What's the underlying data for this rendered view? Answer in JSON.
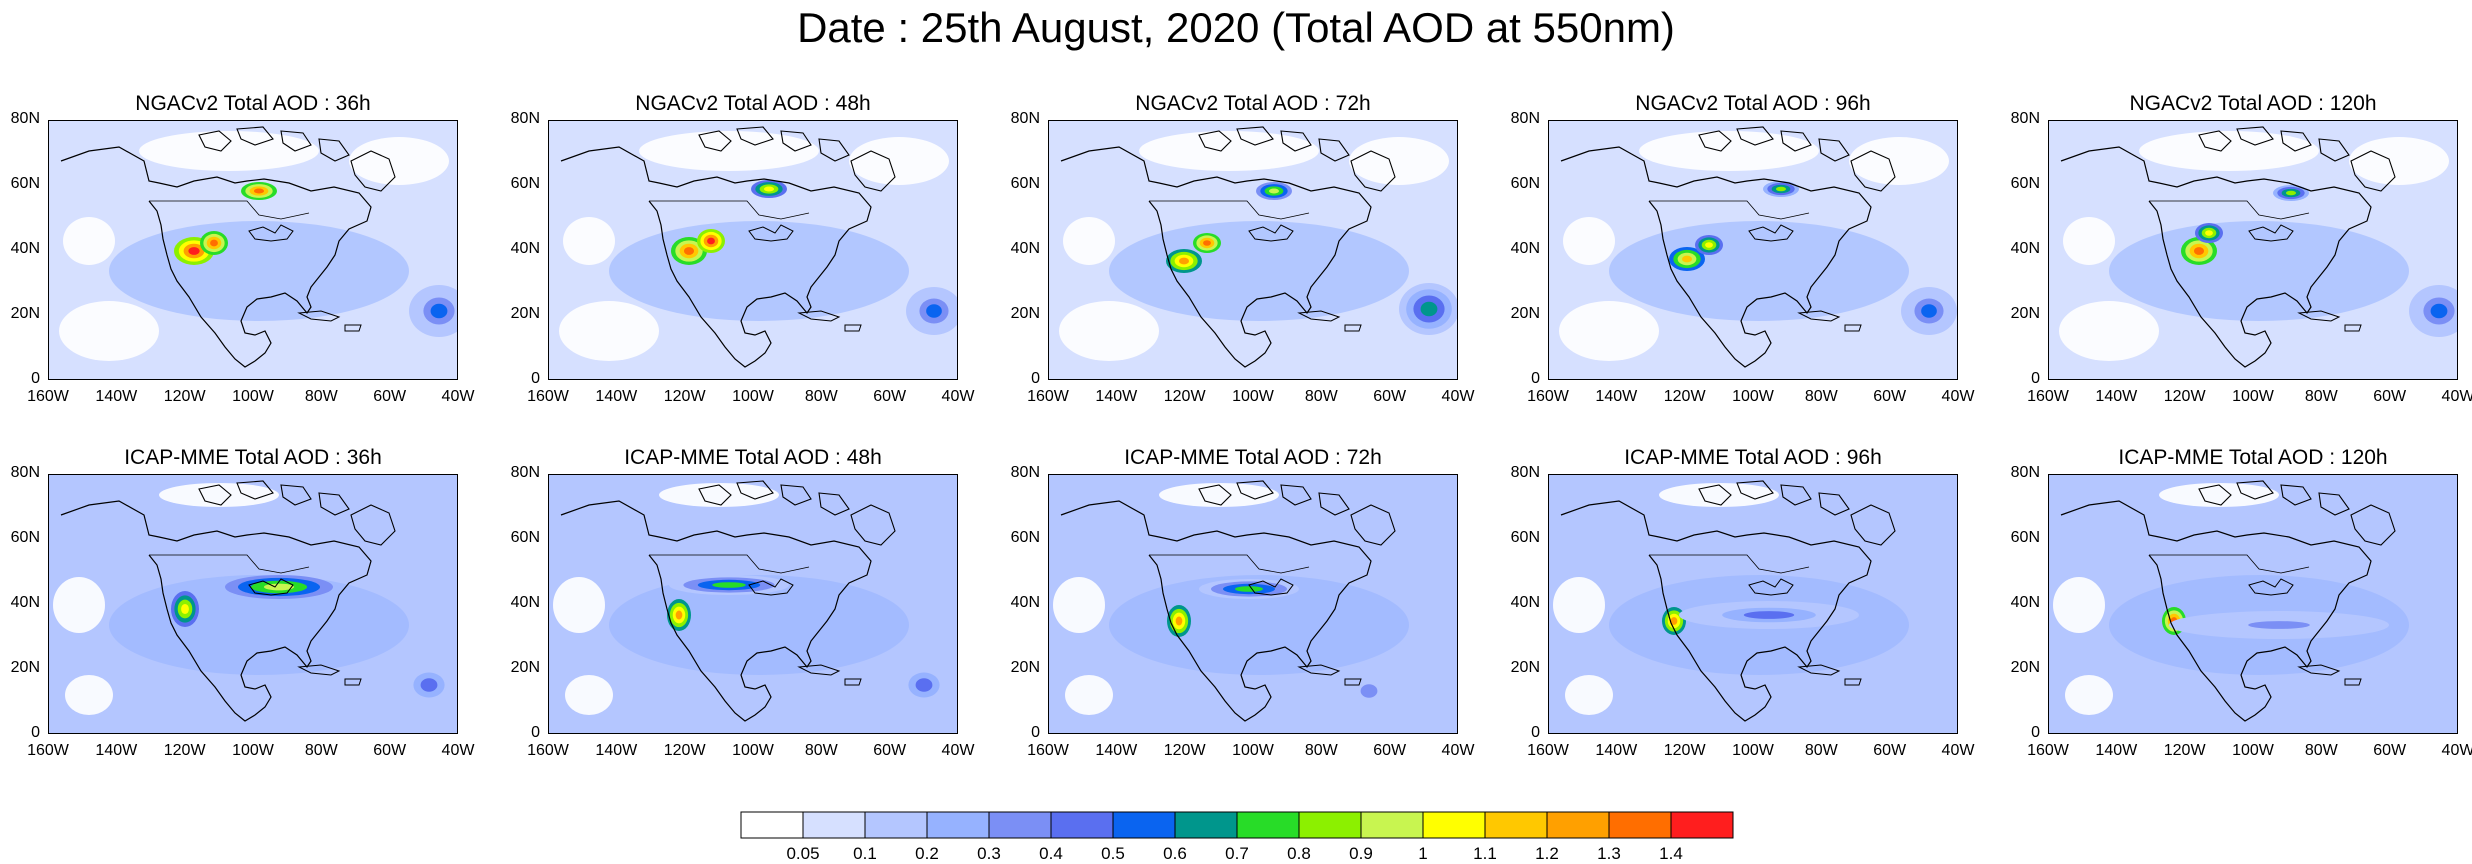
{
  "figure": {
    "title": "Date : 25th August, 2020 (Total AOD at 550nm)"
  },
  "lat_ticks": [
    "0",
    "20N",
    "40N",
    "60N",
    "80N"
  ],
  "lon_ticks": [
    "160W",
    "140W",
    "120W",
    "100W",
    "80W",
    "60W",
    "40W"
  ],
  "panels": [
    {
      "title": "NGACv2 Total AOD : 36h",
      "model": "NGACv2",
      "lead": "36h"
    },
    {
      "title": "NGACv2 Total AOD : 48h",
      "model": "NGACv2",
      "lead": "48h"
    },
    {
      "title": "NGACv2 Total AOD : 72h",
      "model": "NGACv2",
      "lead": "72h"
    },
    {
      "title": "NGACv2 Total AOD : 96h",
      "model": "NGACv2",
      "lead": "96h"
    },
    {
      "title": "NGACv2 Total AOD : 120h",
      "model": "NGACv2",
      "lead": "120h"
    },
    {
      "title": "ICAP-MME Total AOD : 36h",
      "model": "ICAP-MME",
      "lead": "36h"
    },
    {
      "title": "ICAP-MME Total AOD : 48h",
      "model": "ICAP-MME",
      "lead": "48h"
    },
    {
      "title": "ICAP-MME Total AOD : 72h",
      "model": "ICAP-MME",
      "lead": "72h"
    },
    {
      "title": "ICAP-MME Total AOD : 96h",
      "model": "ICAP-MME",
      "lead": "96h"
    },
    {
      "title": "ICAP-MME Total AOD : 120h",
      "model": "ICAP-MME",
      "lead": "120h"
    }
  ],
  "colorbar": {
    "labels": [
      "0.05",
      "0.1",
      "0.2",
      "0.3",
      "0.4",
      "0.5",
      "0.6",
      "0.7",
      "0.8",
      "0.9",
      "1",
      "1.1",
      "1.2",
      "1.3",
      "1.4"
    ],
    "colors": [
      "#ffffff",
      "#d6e0ff",
      "#b4c6ff",
      "#96b2ff",
      "#7b8ff5",
      "#5a6ff0",
      "#0a64f0",
      "#00968c",
      "#28dc28",
      "#8cf000",
      "#c8f550",
      "#ffff00",
      "#ffc800",
      "#ffa000",
      "#ff6e00",
      "#ff1e1e"
    ]
  }
}
